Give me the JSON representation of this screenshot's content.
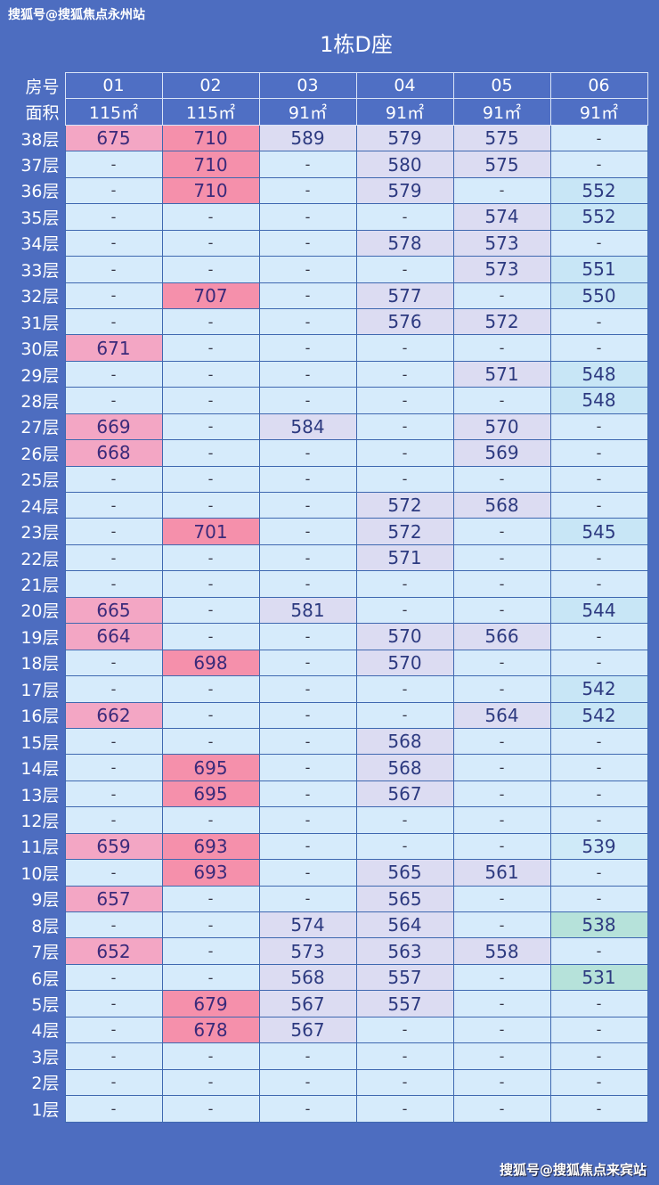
{
  "watermark_top": "搜狐号@搜狐焦点永州站",
  "title": "1栋D座",
  "watermark_bottom": "搜狐号@搜狐焦点来宾站",
  "header": {
    "room_label": "房号",
    "area_label": "面积",
    "rooms": [
      "01",
      "02",
      "03",
      "04",
      "05",
      "06"
    ],
    "areas": [
      "115㎡",
      "115㎡",
      "91㎡",
      "91㎡",
      "91㎡",
      "91㎡"
    ]
  },
  "colors": {
    "background": "#4d6dc0",
    "cell_empty": "#d6ebfb",
    "col_highlight": [
      "#f3a6c4",
      "#f590ab",
      "#dcdcf2",
      "#dcdcf2",
      "#dcdcf2",
      "#c8e6f6"
    ],
    "col06_low": "#b6e2da"
  },
  "rows": [
    {
      "floor": "38层",
      "values": [
        "675",
        "710",
        "589",
        "579",
        "575",
        "-"
      ]
    },
    {
      "floor": "37层",
      "values": [
        "-",
        "710",
        "-",
        "580",
        "575",
        "-"
      ]
    },
    {
      "floor": "36层",
      "values": [
        "-",
        "710",
        "-",
        "579",
        "-",
        "552"
      ]
    },
    {
      "floor": "35层",
      "values": [
        "-",
        "-",
        "-",
        "-",
        "574",
        "552"
      ]
    },
    {
      "floor": "34层",
      "values": [
        "-",
        "-",
        "-",
        "578",
        "573",
        "-"
      ]
    },
    {
      "floor": "33层",
      "values": [
        "-",
        "-",
        "-",
        "-",
        "573",
        "551"
      ]
    },
    {
      "floor": "32层",
      "values": [
        "-",
        "707",
        "-",
        "577",
        "-",
        "550"
      ]
    },
    {
      "floor": "31层",
      "values": [
        "-",
        "-",
        "-",
        "576",
        "572",
        "-"
      ]
    },
    {
      "floor": "30层",
      "values": [
        "671",
        "-",
        "-",
        "-",
        "-",
        "-"
      ]
    },
    {
      "floor": "29层",
      "values": [
        "-",
        "-",
        "-",
        "-",
        "571",
        "548"
      ]
    },
    {
      "floor": "28层",
      "values": [
        "-",
        "-",
        "-",
        "-",
        "-",
        "548"
      ]
    },
    {
      "floor": "27层",
      "values": [
        "669",
        "-",
        "584",
        "-",
        "570",
        "-"
      ]
    },
    {
      "floor": "26层",
      "values": [
        "668",
        "-",
        "-",
        "-",
        "569",
        "-"
      ]
    },
    {
      "floor": "25层",
      "values": [
        "-",
        "-",
        "-",
        "-",
        "-",
        "-"
      ]
    },
    {
      "floor": "24层",
      "values": [
        "-",
        "-",
        "-",
        "572",
        "568",
        "-"
      ]
    },
    {
      "floor": "23层",
      "values": [
        "-",
        "701",
        "-",
        "572",
        "-",
        "545"
      ]
    },
    {
      "floor": "22层",
      "values": [
        "-",
        "-",
        "-",
        "571",
        "-",
        "-"
      ]
    },
    {
      "floor": "21层",
      "values": [
        "-",
        "-",
        "-",
        "-",
        "-",
        "-"
      ]
    },
    {
      "floor": "20层",
      "values": [
        "665",
        "-",
        "581",
        "-",
        "-",
        "544"
      ]
    },
    {
      "floor": "19层",
      "values": [
        "664",
        "-",
        "-",
        "570",
        "566",
        "-"
      ]
    },
    {
      "floor": "18层",
      "values": [
        "-",
        "698",
        "-",
        "570",
        "-",
        "-"
      ]
    },
    {
      "floor": "17层",
      "values": [
        "-",
        "-",
        "-",
        "-",
        "-",
        "542"
      ]
    },
    {
      "floor": "16层",
      "values": [
        "662",
        "-",
        "-",
        "-",
        "564",
        "542"
      ]
    },
    {
      "floor": "15层",
      "values": [
        "-",
        "-",
        "-",
        "568",
        "-",
        "-"
      ]
    },
    {
      "floor": "14层",
      "values": [
        "-",
        "695",
        "-",
        "568",
        "-",
        "-"
      ]
    },
    {
      "floor": "13层",
      "values": [
        "-",
        "695",
        "-",
        "567",
        "-",
        "-"
      ]
    },
    {
      "floor": "12层",
      "values": [
        "-",
        "-",
        "-",
        "-",
        "-",
        "-"
      ]
    },
    {
      "floor": "11层",
      "values": [
        "659",
        "693",
        "-",
        "-",
        "-",
        "539"
      ]
    },
    {
      "floor": "10层",
      "values": [
        "-",
        "693",
        "-",
        "565",
        "561",
        "-"
      ]
    },
    {
      "floor": "9层",
      "values": [
        "657",
        "-",
        "-",
        "565",
        "-",
        "-"
      ]
    },
    {
      "floor": "8层",
      "values": [
        "-",
        "-",
        "574",
        "564",
        "-",
        "538"
      ]
    },
    {
      "floor": "7层",
      "values": [
        "652",
        "-",
        "573",
        "563",
        "558",
        "-"
      ]
    },
    {
      "floor": "6层",
      "values": [
        "-",
        "-",
        "568",
        "557",
        "-",
        "531"
      ]
    },
    {
      "floor": "5层",
      "values": [
        "-",
        "679",
        "567",
        "557",
        "-",
        "-"
      ]
    },
    {
      "floor": "4层",
      "values": [
        "-",
        "678",
        "567",
        "-",
        "-",
        "-"
      ]
    },
    {
      "floor": "3层",
      "values": [
        "-",
        "-",
        "-",
        "-",
        "-",
        "-"
      ]
    },
    {
      "floor": "2层",
      "values": [
        "-",
        "-",
        "-",
        "-",
        "-",
        "-"
      ]
    },
    {
      "floor": "1层",
      "values": [
        "-",
        "-",
        "-",
        "-",
        "-",
        "-"
      ]
    }
  ]
}
